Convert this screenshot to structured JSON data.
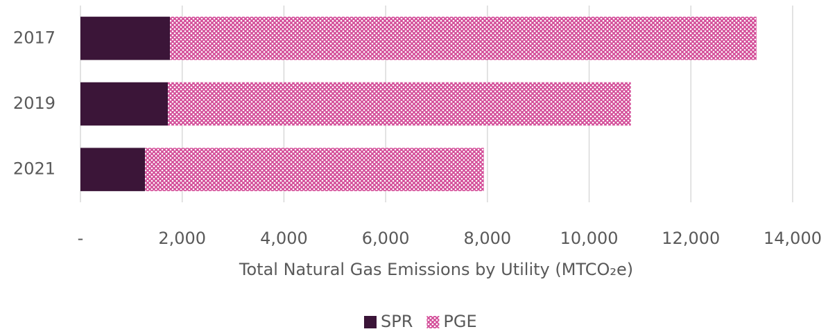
{
  "chart_data": {
    "type": "stacked_barh",
    "x_label": "Total Natural Gas Emissions by Utility (MTCO₂e)",
    "categories": [
      "2017",
      "2019",
      "2021"
    ],
    "series": [
      {
        "name": "SPR",
        "color": "#3b1538",
        "values": [
          1760,
          1720,
          1270
        ]
      },
      {
        "name": "PGE",
        "color": "#d4509a",
        "hatch": true,
        "values": [
          11530,
          9100,
          6660
        ]
      }
    ],
    "xlim": [
      0,
      14000
    ],
    "xticks": [
      {
        "value": 0,
        "label": "-"
      },
      {
        "value": 2000,
        "label": "2,000"
      },
      {
        "value": 4000,
        "label": "4,000"
      },
      {
        "value": 6000,
        "label": "6,000"
      },
      {
        "value": 8000,
        "label": "8,000"
      },
      {
        "value": 10000,
        "label": "10,000"
      },
      {
        "value": 12000,
        "label": "12,000"
      },
      {
        "value": 14000,
        "label": "14,000"
      }
    ],
    "grid": true,
    "legend": "bottom"
  }
}
